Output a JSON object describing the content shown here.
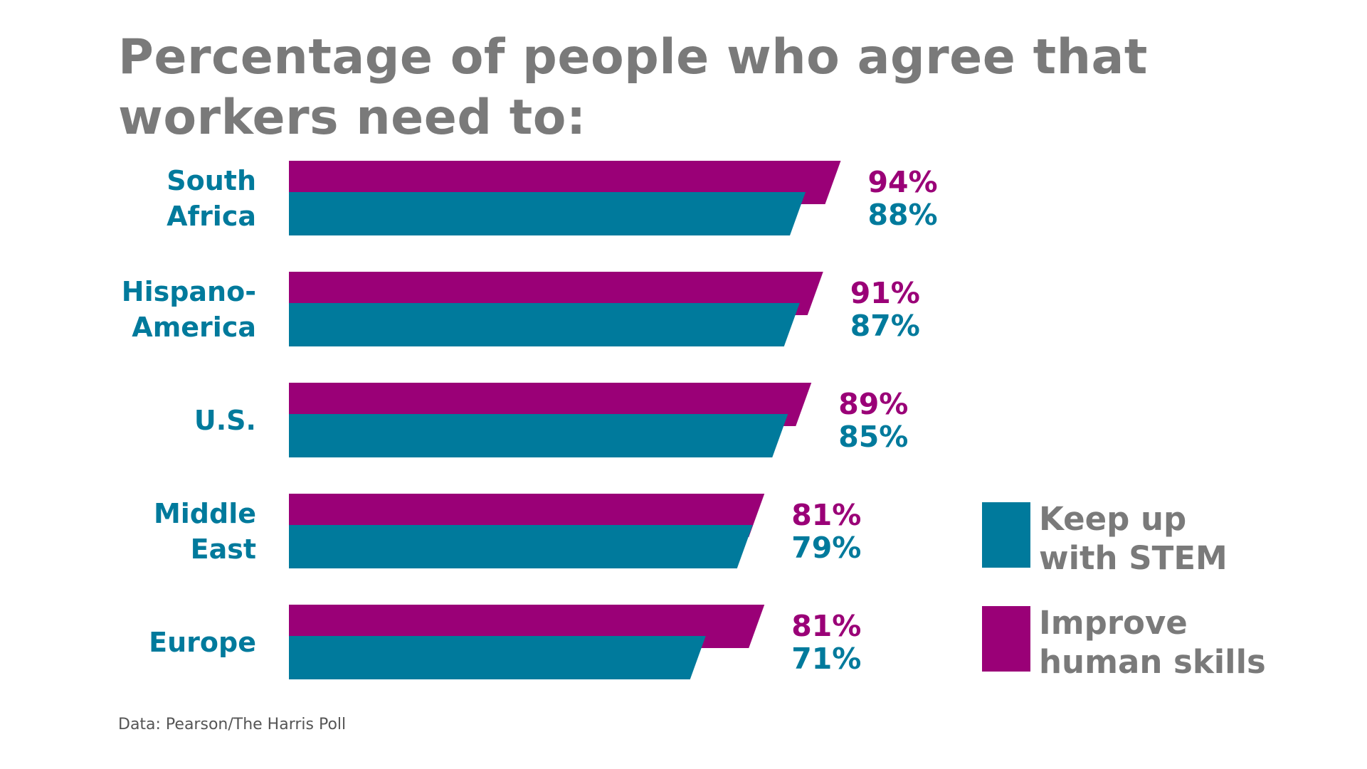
{
  "title": "Percentage of people who agree that workers need to:",
  "source": "Data: Pearson/The Harris Poll",
  "colors": {
    "stem": "#007a9c",
    "human": "#9a0077",
    "text_gray": "#7a7a7a",
    "label_blue": "#007a9c"
  },
  "legend": {
    "stem": "Keep up with STEM",
    "human": "Improve human skills"
  },
  "chart_data": {
    "type": "bar",
    "orientation": "horizontal",
    "title": "Percentage of people who agree that workers need to:",
    "categories": [
      "South Africa",
      "Hispano-America",
      "U.S.",
      "Middle East",
      "Europe"
    ],
    "category_lines": [
      [
        "South",
        "Africa"
      ],
      [
        "Hispano-",
        "America"
      ],
      [
        "U.S."
      ],
      [
        "Middle",
        "East"
      ],
      [
        "Europe"
      ]
    ],
    "series": [
      {
        "name": "Improve human skills",
        "values": [
          94,
          91,
          89,
          81,
          81
        ],
        "labels": [
          "94%",
          "91%",
          "89%",
          "81%",
          "81%"
        ]
      },
      {
        "name": "Keep up with STEM",
        "values": [
          88,
          87,
          85,
          79,
          71
        ],
        "labels": [
          "88%",
          "87%",
          "85%",
          "79%",
          "71%"
        ]
      }
    ],
    "unit": "%",
    "grid": false,
    "legend_position": "right"
  }
}
